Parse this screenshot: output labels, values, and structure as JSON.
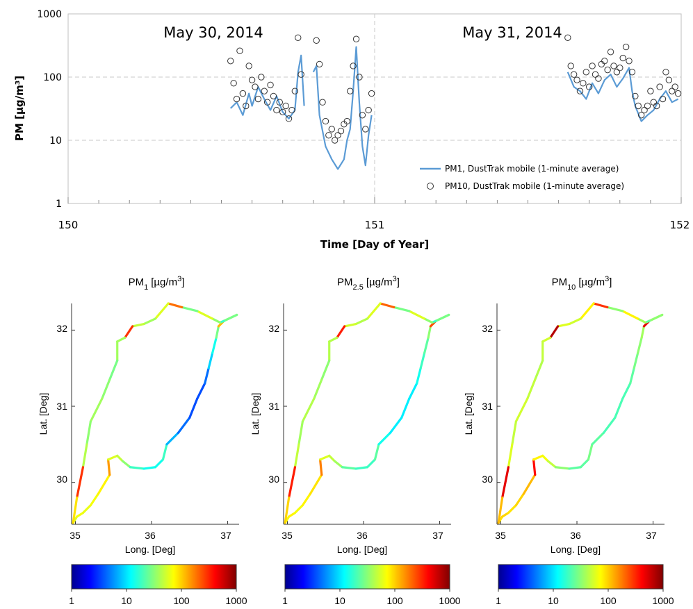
{
  "chart_data": [
    {
      "type": "line",
      "xlabel": "Time [Day of Year]",
      "ylabel": "PM [µg/m³]",
      "xlim": [
        150,
        152
      ],
      "ylim": [
        1,
        1000
      ],
      "yscale": "log",
      "grid": true,
      "x_ticks": [
        "150",
        "151",
        "152"
      ],
      "y_ticks": [
        "1",
        "10",
        "100",
        "1000"
      ],
      "annotations": [
        "May 30, 2014",
        "May 31, 2014"
      ],
      "legend_position": "lower-right",
      "legend": [
        {
          "label": "PM1, DustTrak mobile (1-minute average)",
          "kind": "line",
          "color": "#5b9bd5"
        },
        {
          "label": "PM10, DustTrak mobile (1-minute average)",
          "kind": "marker",
          "color": "#333333"
        }
      ],
      "series": [
        {
          "name": "PM1, DustTrak mobile (1-minute average)",
          "color": "#5b9bd5",
          "points": [
            [
              150.53,
              32
            ],
            [
              150.55,
              40
            ],
            [
              150.57,
              25
            ],
            [
              150.59,
              55
            ],
            [
              150.6,
              35
            ],
            [
              150.62,
              70
            ],
            [
              150.64,
              45
            ],
            [
              150.66,
              30
            ],
            [
              150.68,
              50
            ],
            [
              150.7,
              28
            ],
            [
              150.72,
              22
            ],
            [
              150.74,
              30
            ],
            [
              150.75,
              120
            ],
            [
              150.76,
              220
            ],
            [
              150.77,
              35
            ],
            [
              150.79,
              null
            ],
            [
              150.8,
              120
            ],
            [
              150.81,
              150
            ],
            [
              150.82,
              25
            ],
            [
              150.84,
              8
            ],
            [
              150.86,
              5
            ],
            [
              150.88,
              3.5
            ],
            [
              150.9,
              5
            ],
            [
              150.91,
              10
            ],
            [
              150.92,
              15
            ],
            [
              150.93,
              60
            ],
            [
              150.94,
              300
            ],
            [
              150.95,
              40
            ],
            [
              150.96,
              8
            ],
            [
              150.97,
              4
            ],
            [
              150.98,
              12
            ],
            [
              150.99,
              25
            ],
            [
              151.0,
              null
            ],
            [
              151.63,
              null
            ],
            [
              151.63,
              120
            ],
            [
              151.65,
              70
            ],
            [
              151.67,
              60
            ],
            [
              151.69,
              45
            ],
            [
              151.71,
              80
            ],
            [
              151.73,
              55
            ],
            [
              151.75,
              90
            ],
            [
              151.77,
              110
            ],
            [
              151.79,
              70
            ],
            [
              151.81,
              95
            ],
            [
              151.83,
              140
            ],
            [
              151.84,
              60
            ],
            [
              151.85,
              35
            ],
            [
              151.87,
              20
            ],
            [
              151.89,
              25
            ],
            [
              151.91,
              30
            ],
            [
              151.93,
              45
            ],
            [
              151.95,
              60
            ],
            [
              151.97,
              40
            ],
            [
              151.99,
              45
            ]
          ]
        },
        {
          "name": "PM10, DustTrak mobile (1-minute average)",
          "color": "#333333",
          "points": [
            [
              150.53,
              180
            ],
            [
              150.54,
              80
            ],
            [
              150.55,
              45
            ],
            [
              150.56,
              260
            ],
            [
              150.57,
              55
            ],
            [
              150.58,
              35
            ],
            [
              150.59,
              150
            ],
            [
              150.6,
              90
            ],
            [
              150.61,
              70
            ],
            [
              150.62,
              45
            ],
            [
              150.63,
              100
            ],
            [
              150.64,
              60
            ],
            [
              150.65,
              40
            ],
            [
              150.66,
              75
            ],
            [
              150.67,
              50
            ],
            [
              150.68,
              30
            ],
            [
              150.69,
              40
            ],
            [
              150.7,
              28
            ],
            [
              150.71,
              35
            ],
            [
              150.72,
              22
            ],
            [
              150.73,
              30
            ],
            [
              150.74,
              60
            ],
            [
              150.75,
              420
            ],
            [
              150.76,
              110
            ],
            [
              150.81,
              380
            ],
            [
              150.82,
              160
            ],
            [
              150.83,
              40
            ],
            [
              150.84,
              20
            ],
            [
              150.85,
              12
            ],
            [
              150.86,
              15
            ],
            [
              150.87,
              10
            ],
            [
              150.88,
              12
            ],
            [
              150.89,
              14
            ],
            [
              150.9,
              18
            ],
            [
              150.91,
              20
            ],
            [
              150.92,
              60
            ],
            [
              150.93,
              150
            ],
            [
              150.94,
              400
            ],
            [
              150.95,
              100
            ],
            [
              150.96,
              25
            ],
            [
              150.97,
              15
            ],
            [
              150.98,
              30
            ],
            [
              150.99,
              55
            ],
            [
              151.63,
              420
            ],
            [
              151.64,
              150
            ],
            [
              151.65,
              110
            ],
            [
              151.66,
              90
            ],
            [
              151.67,
              60
            ],
            [
              151.68,
              80
            ],
            [
              151.69,
              120
            ],
            [
              151.7,
              70
            ],
            [
              151.71,
              150
            ],
            [
              151.72,
              110
            ],
            [
              151.73,
              95
            ],
            [
              151.74,
              160
            ],
            [
              151.75,
              180
            ],
            [
              151.76,
              130
            ],
            [
              151.77,
              250
            ],
            [
              151.78,
              150
            ],
            [
              151.79,
              120
            ],
            [
              151.8,
              140
            ],
            [
              151.81,
              200
            ],
            [
              151.82,
              300
            ],
            [
              151.83,
              180
            ],
            [
              151.84,
              120
            ],
            [
              151.85,
              50
            ],
            [
              151.86,
              35
            ],
            [
              151.87,
              25
            ],
            [
              151.88,
              30
            ],
            [
              151.89,
              35
            ],
            [
              151.9,
              60
            ],
            [
              151.91,
              40
            ],
            [
              151.92,
              35
            ],
            [
              151.93,
              70
            ],
            [
              151.94,
              45
            ],
            [
              151.95,
              120
            ],
            [
              151.96,
              90
            ],
            [
              151.97,
              60
            ],
            [
              151.98,
              70
            ],
            [
              151.99,
              55
            ]
          ]
        }
      ]
    },
    {
      "type": "map",
      "title_base": "PM",
      "title_sub": "1",
      "title_unit": "[µg/m",
      "title_sup": "3",
      "title_end": "]",
      "xlabel": "Long. [Deg]",
      "ylabel": "Lat. [Deg]",
      "xlim": [
        34.95,
        37.15
      ],
      "ylim": [
        29.45,
        32.35
      ],
      "x_ticks": [
        "35",
        "36",
        "37"
      ],
      "y_ticks": [
        "30",
        "31",
        "32"
      ],
      "colorbar_ticks": [
        "1",
        "10",
        "100",
        "1000"
      ],
      "colorbar_scale": "log"
    },
    {
      "type": "map",
      "title_base": "PM",
      "title_sub": "2.5",
      "title_unit": "[µg/m",
      "title_sup": "3",
      "title_end": "]",
      "xlabel": "Long. [Deg]",
      "ylabel": "Lat. [Deg]",
      "xlim": [
        34.95,
        37.15
      ],
      "ylim": [
        29.45,
        32.35
      ],
      "x_ticks": [
        "35",
        "36",
        "37"
      ],
      "y_ticks": [
        "30",
        "31",
        "32"
      ],
      "colorbar_ticks": [
        "1",
        "10",
        "100",
        "1000"
      ],
      "colorbar_scale": "log"
    },
    {
      "type": "map",
      "title_base": "PM",
      "title_sub": "10",
      "title_unit": "[µg/m",
      "title_sup": "3",
      "title_end": "]",
      "xlabel": "Long. [Deg]",
      "ylabel": "Lat. [Deg]",
      "xlim": [
        34.95,
        37.15
      ],
      "ylim": [
        29.45,
        32.35
      ],
      "x_ticks": [
        "35",
        "36",
        "37"
      ],
      "y_ticks": [
        "30",
        "31",
        "32"
      ],
      "colorbar_ticks": [
        "1",
        "10",
        "100",
        "1000"
      ],
      "colorbar_scale": "log"
    }
  ],
  "route": {
    "points": [
      [
        34.97,
        29.47
      ],
      [
        35.02,
        29.55
      ],
      [
        35.1,
        29.6
      ],
      [
        35.2,
        29.7
      ],
      [
        35.3,
        29.85
      ],
      [
        35.45,
        30.1
      ],
      [
        35.43,
        30.3
      ],
      [
        35.55,
        30.35
      ],
      [
        35.62,
        30.28
      ],
      [
        35.72,
        30.2
      ],
      [
        35.9,
        30.18
      ],
      [
        36.05,
        30.2
      ],
      [
        36.15,
        30.3
      ],
      [
        36.2,
        30.5
      ],
      [
        36.35,
        30.65
      ],
      [
        36.5,
        30.85
      ],
      [
        36.6,
        31.1
      ],
      [
        36.7,
        31.3
      ],
      [
        36.75,
        31.5
      ],
      [
        36.8,
        31.7
      ],
      [
        36.85,
        31.9
      ],
      [
        36.88,
        32.05
      ],
      [
        36.95,
        32.12
      ],
      [
        37.12,
        32.2
      ],
      [
        36.95,
        32.12
      ],
      [
        36.9,
        32.1
      ],
      [
        36.8,
        32.15
      ],
      [
        36.6,
        32.25
      ],
      [
        36.4,
        32.3
      ],
      [
        36.22,
        32.35
      ],
      [
        36.05,
        32.15
      ],
      [
        35.9,
        32.08
      ],
      [
        35.75,
        32.05
      ],
      [
        35.65,
        31.9
      ],
      [
        35.55,
        31.85
      ],
      [
        35.55,
        31.6
      ],
      [
        35.45,
        31.35
      ],
      [
        35.35,
        31.1
      ],
      [
        35.2,
        30.8
      ],
      [
        35.15,
        30.5
      ],
      [
        35.1,
        30.2
      ],
      [
        35.02,
        29.8
      ],
      [
        34.97,
        29.47
      ]
    ],
    "pm1": [
      60,
      70,
      65,
      70,
      80,
      150,
      60,
      50,
      35,
      20,
      15,
      15,
      20,
      8,
      5,
      4,
      4,
      5,
      10,
      15,
      30,
      120,
      40,
      30,
      20,
      35,
      60,
      30,
      200,
      60,
      40,
      50,
      300,
      40,
      40,
      30,
      35,
      40,
      35,
      45,
      300,
      90,
      60
    ],
    "pm25": [
      70,
      80,
      70,
      80,
      90,
      180,
      60,
      50,
      40,
      25,
      20,
      20,
      25,
      15,
      12,
      12,
      12,
      15,
      20,
      25,
      35,
      250,
      40,
      30,
      20,
      35,
      60,
      30,
      220,
      60,
      45,
      55,
      350,
      45,
      45,
      35,
      40,
      45,
      40,
      50,
      350,
      100,
      70
    ],
    "pm10": [
      90,
      100,
      90,
      100,
      120,
      400,
      80,
      70,
      50,
      35,
      25,
      25,
      30,
      25,
      22,
      22,
      22,
      25,
      30,
      35,
      40,
      500,
      45,
      35,
      25,
      40,
      80,
      35,
      300,
      80,
      55,
      60,
      700,
      55,
      50,
      45,
      50,
      55,
      50,
      60,
      500,
      120,
      80
    ]
  }
}
